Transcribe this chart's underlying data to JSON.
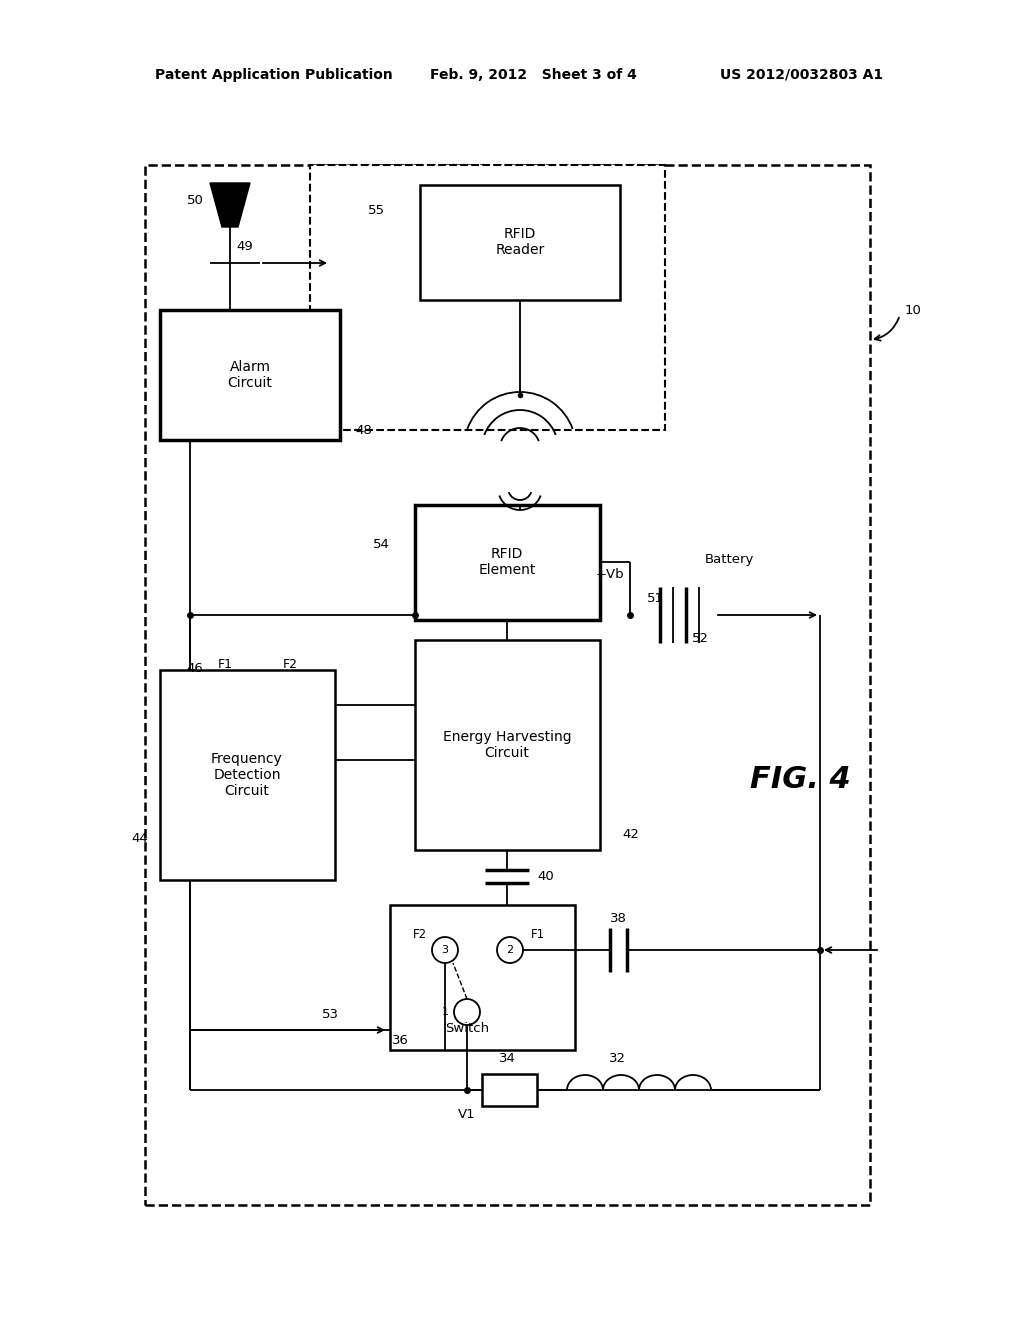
{
  "bg_color": "#ffffff",
  "header_left": "Patent Application Publication",
  "header_center": "Feb. 9, 2012   Sheet 3 of 4",
  "header_right": "US 2012/0032803 A1",
  "fig_label": "FIG. 4"
}
